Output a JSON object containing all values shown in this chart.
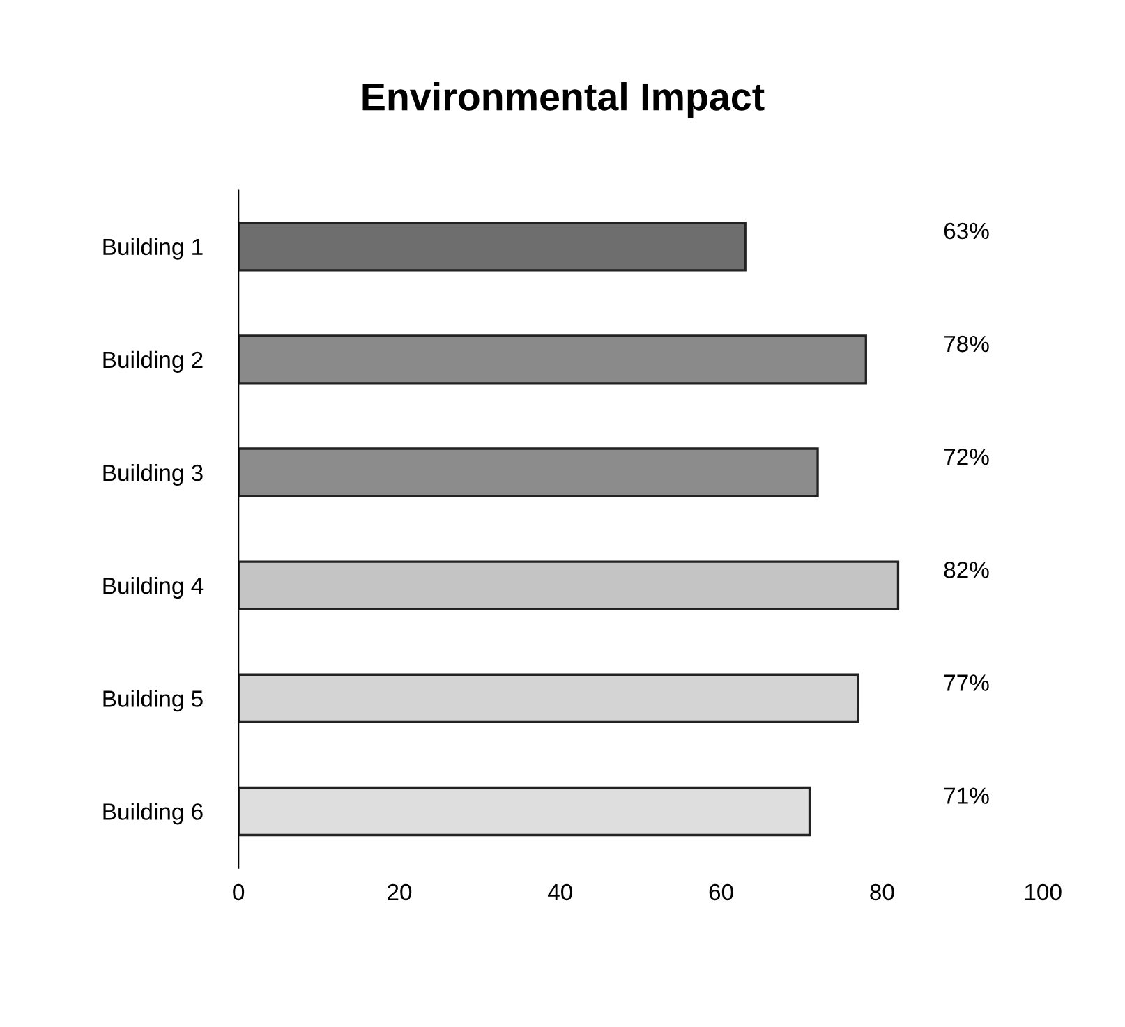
{
  "chart_data": {
    "type": "bar",
    "orientation": "horizontal",
    "title": "Environmental Impact",
    "categories": [
      "Building 1",
      "Building 2",
      "Building 3",
      "Building 4",
      "Building 5",
      "Building 6"
    ],
    "values": [
      63,
      78,
      72,
      82,
      77,
      71
    ],
    "colors": [
      "#6e6e6e",
      "#8a8a8a",
      "#8c8c8c",
      "#c4c4c4",
      "#d4d4d4",
      "#dedede"
    ],
    "value_labels": [
      "63%",
      "78%",
      "72%",
      "82%",
      "77%",
      "71%"
    ],
    "xlim": [
      0,
      100
    ],
    "xticks": [
      0,
      20,
      40,
      60,
      80,
      100
    ],
    "grid": false,
    "legend": false
  }
}
